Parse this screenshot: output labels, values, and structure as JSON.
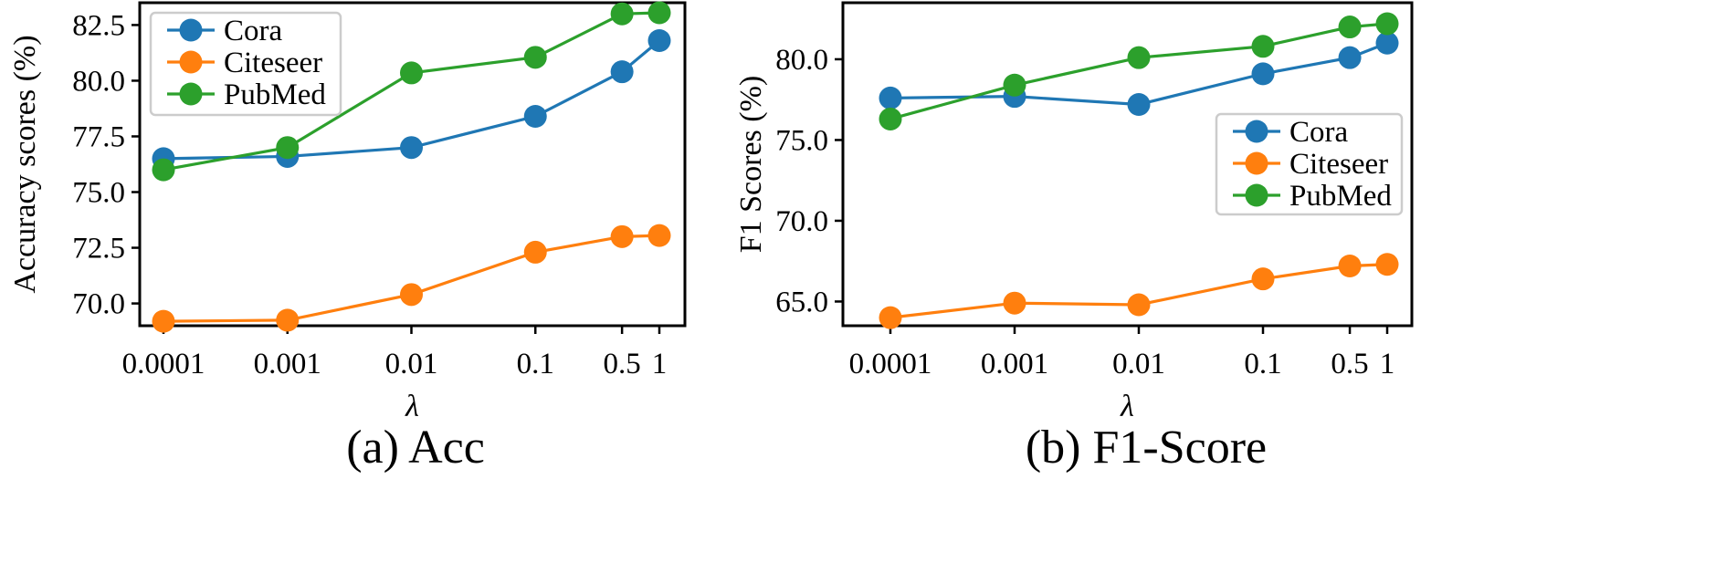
{
  "chart_data": [
    {
      "type": "line",
      "caption": "(a) Acc",
      "xlabel": "λ",
      "ylabel": "Accuracy scores (%)",
      "x": [
        0.0001,
        0.001,
        0.01,
        0.1,
        0.5,
        1
      ],
      "x_tick_labels": [
        "0.0001",
        "0.001",
        "0.01",
        "0.1",
        "0.5",
        "1"
      ],
      "x_scale": "log",
      "y_ticks": [
        70.0,
        72.5,
        75.0,
        77.5,
        80.0,
        82.5
      ],
      "y_tick_labels": [
        "70.0",
        "72.5",
        "75.0",
        "77.5",
        "80.0",
        "82.5"
      ],
      "ylim": [
        69.0,
        83.5
      ],
      "grid": false,
      "legend_position": "top-left",
      "series": [
        {
          "name": "Cora",
          "color": "#1f77b4",
          "values": [
            76.5,
            76.6,
            77.0,
            78.4,
            80.4,
            81.8
          ]
        },
        {
          "name": "Citeseer",
          "color": "#ff7f0e",
          "values": [
            69.2,
            69.25,
            70.4,
            72.3,
            73.0,
            73.05
          ]
        },
        {
          "name": "PubMed",
          "color": "#2ca02c",
          "values": [
            76.0,
            77.0,
            80.35,
            81.05,
            83.0,
            83.05
          ]
        }
      ]
    },
    {
      "type": "line",
      "caption": "(b) F1-Score",
      "xlabel": "λ",
      "ylabel": "F1 Scores (%)",
      "x": [
        0.0001,
        0.001,
        0.01,
        0.1,
        0.5,
        1
      ],
      "x_tick_labels": [
        "0.0001",
        "0.001",
        "0.01",
        "0.1",
        "0.5",
        "1"
      ],
      "x_scale": "log",
      "y_ticks": [
        65.0,
        70.0,
        75.0,
        80.0
      ],
      "y_tick_labels": [
        "65.0",
        "70.0",
        "75.0",
        "80.0"
      ],
      "ylim": [
        63.5,
        83.5
      ],
      "grid": false,
      "legend_position": "center-right",
      "series": [
        {
          "name": "Cora",
          "color": "#1f77b4",
          "values": [
            77.6,
            77.7,
            77.2,
            79.1,
            80.1,
            81.0
          ]
        },
        {
          "name": "Citeseer",
          "color": "#ff7f0e",
          "values": [
            64.0,
            64.9,
            64.8,
            66.4,
            67.2,
            67.3
          ]
        },
        {
          "name": "PubMed",
          "color": "#2ca02c",
          "values": [
            76.3,
            78.4,
            80.1,
            80.8,
            82.0,
            82.2
          ]
        }
      ]
    }
  ]
}
